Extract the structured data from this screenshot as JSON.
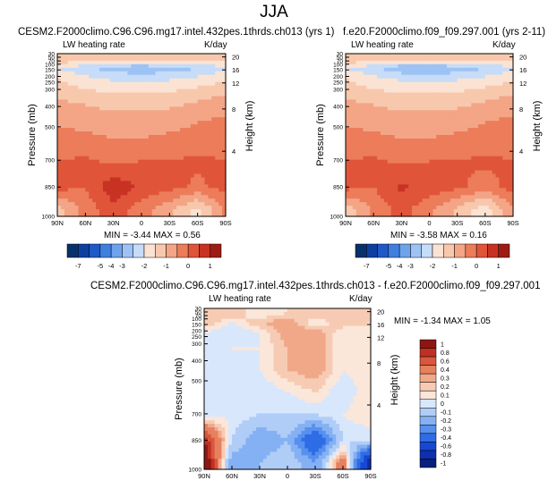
{
  "figure": {
    "title": "JJA"
  },
  "palette": {
    "main": [
      "#08306b",
      "#0d3fa0",
      "#1f58c8",
      "#3f7fe0",
      "#6ea2ec",
      "#9dc3f4",
      "#c6dcf8",
      "#fbe3d4",
      "#f8c8ad",
      "#f3a586",
      "#ec7c5a",
      "#e0553a",
      "#c83223",
      "#9e1b15"
    ],
    "diff": [
      "#08207a",
      "#0d2fb0",
      "#1748d5",
      "#2f6ce6",
      "#5790ee",
      "#84b1f3",
      "#b0cdf7",
      "#d8e7fb",
      "#fbe6da",
      "#f7cbb3",
      "#f1a889",
      "#e7805f",
      "#d9573c",
      "#c03022",
      "#8e1612"
    ]
  },
  "panels": [
    {
      "title": "CESM2.F2000climo.C96.C96.mg17.intel.432pes.1thrds.ch013 (yrs 1)",
      "variable": "LW heating rate",
      "units": "K/day",
      "stats": "MIN = -3.44  MAX =  0.56",
      "xticks": [
        "90N",
        "60N",
        "30N",
        "0",
        "30S",
        "60S",
        "90S"
      ],
      "yticks": [
        "30",
        "50",
        "70",
        "100",
        "150",
        "200",
        "250",
        "300",
        "400",
        "500",
        "700",
        "850",
        "1000"
      ],
      "ylabel": "Pressure (mb)",
      "y2ticks": [
        "20",
        "16",
        "12",
        "8",
        "4"
      ],
      "y2label": "Height (km)"
    },
    {
      "title": "f.e20.F2000climo.f09_f09.297.001 (yrs 2-11)",
      "variable": "LW heating rate",
      "units": "K/day",
      "stats": "MIN = -3.58  MAX =  0.16",
      "xticks": [
        "90N",
        "60N",
        "30N",
        "0",
        "30S",
        "60S",
        "90S"
      ],
      "yticks": [
        "30",
        "50",
        "70",
        "100",
        "150",
        "200",
        "250",
        "300",
        "400",
        "500",
        "700",
        "850",
        "1000"
      ],
      "ylabel": "Pressure (mb)",
      "y2ticks": [
        "20",
        "16",
        "12",
        "8",
        "4"
      ],
      "y2label": "Height (km)"
    },
    {
      "title": "CESM2.F2000climo.C96.C96.mg17.intel.432pes.1thrds.ch013 - f.e20.F2000climo.f09_f09.297.001",
      "variable": "LW heating rate",
      "units": "K/day",
      "stats": "MIN = -1.34  MAX =   1.05",
      "xticks": [
        "90N",
        "60N",
        "30N",
        "0",
        "30S",
        "60S",
        "90S"
      ],
      "yticks": [
        "30",
        "50",
        "70",
        "100",
        "150",
        "200",
        "250",
        "300",
        "400",
        "500",
        "700",
        "850",
        "1000"
      ],
      "ylabel": "Pressure (mb)",
      "y2ticks": [
        "20",
        "16",
        "12",
        "8",
        "4"
      ],
      "y2label": "Height (km)"
    }
  ],
  "colorbars": {
    "main_labels": [
      "-7",
      "-5",
      "-4",
      "-3",
      "-2",
      "-1",
      "0",
      "1"
    ],
    "diff_labels": [
      "1",
      "0.8",
      "0.6",
      "0.4",
      "0.3",
      "0.2",
      "0.1",
      "0",
      "-0.1",
      "-0.2",
      "-0.3",
      "-0.4",
      "-0.6",
      "-0.8",
      "-1"
    ]
  },
  "chart_data": [
    {
      "type": "heatmap",
      "title": "CESM2.F2000climo.C96.C96.mg17.intel.432pes.1thrds.ch013 (yrs 1)",
      "x": [
        "90N",
        "60N",
        "30N",
        "0",
        "30S",
        "60S",
        "90S"
      ],
      "y": [
        30,
        70,
        150,
        250,
        400,
        550,
        700,
        850,
        1000
      ],
      "ylabel": "Pressure (mb)",
      "values": [
        [
          -1.5,
          -1.6,
          -1.8,
          -1.8,
          -1.7,
          -1.6,
          -1.6
        ],
        [
          -2.5,
          -2.9,
          -3.3,
          -3.4,
          -3.3,
          -3.0,
          -2.6
        ],
        [
          -2.0,
          -2.4,
          -2.6,
          -2.7,
          -2.6,
          -2.4,
          -2.1
        ],
        [
          -1.6,
          -1.8,
          -2.0,
          -2.0,
          -1.9,
          -1.7,
          -1.5
        ],
        [
          -1.1,
          -1.2,
          -1.4,
          -1.3,
          -1.3,
          -1.1,
          -1.0
        ],
        [
          -0.9,
          -0.9,
          -1.0,
          -1.0,
          -0.9,
          -0.8,
          -0.7
        ],
        [
          -0.5,
          -0.4,
          -0.6,
          -0.5,
          -0.5,
          -0.4,
          -0.5
        ],
        [
          -0.3,
          -0.5,
          0.4,
          -0.1,
          -0.3,
          -0.6,
          -0.3
        ],
        [
          -1.8,
          -0.8,
          -0.2,
          -0.8,
          -1.4,
          -2.2,
          -0.9
        ]
      ],
      "stats": {
        "min": -3.44,
        "max": 0.56
      }
    },
    {
      "type": "heatmap",
      "title": "f.e20.F2000climo.f09_f09.297.001 (yrs 2-11)",
      "x": [
        "90N",
        "60N",
        "30N",
        "0",
        "30S",
        "60S",
        "90S"
      ],
      "y": [
        30,
        70,
        150,
        250,
        400,
        550,
        700,
        850,
        1000
      ],
      "ylabel": "Pressure (mb)",
      "values": [
        [
          -1.5,
          -1.6,
          -1.8,
          -1.8,
          -1.7,
          -1.6,
          -1.6
        ],
        [
          -2.5,
          -2.9,
          -3.4,
          -3.5,
          -3.3,
          -3.0,
          -2.6
        ],
        [
          -2.0,
          -2.4,
          -2.6,
          -2.7,
          -2.6,
          -2.4,
          -2.1
        ],
        [
          -1.6,
          -1.8,
          -2.0,
          -2.0,
          -1.9,
          -1.7,
          -1.5
        ],
        [
          -1.1,
          -1.2,
          -1.4,
          -1.3,
          -1.3,
          -1.1,
          -1.0
        ],
        [
          -0.9,
          -0.9,
          -1.0,
          -1.0,
          -0.9,
          -0.8,
          -0.7
        ],
        [
          -0.5,
          -0.4,
          -0.6,
          -0.5,
          -0.5,
          -0.4,
          -0.5
        ],
        [
          -0.3,
          -0.5,
          0.1,
          -0.2,
          -0.4,
          -0.7,
          -0.3
        ],
        [
          -1.9,
          -0.9,
          -0.3,
          -0.9,
          -1.6,
          -2.4,
          -1.0
        ]
      ],
      "stats": {
        "min": -3.58,
        "max": 0.16
      }
    },
    {
      "type": "heatmap",
      "title": "CESM2.F2000climo.C96.C96.mg17.intel.432pes.1thrds.ch013 - f.e20.F2000climo.f09_f09.297.001",
      "x": [
        "90N",
        "60N",
        "30N",
        "0",
        "30S",
        "60S",
        "90S"
      ],
      "y": [
        30,
        70,
        150,
        250,
        400,
        550,
        700,
        850,
        1000
      ],
      "ylabel": "Pressure (mb)",
      "values": [
        [
          0.0,
          0.05,
          -0.05,
          0.0,
          0.05,
          0.0,
          0.0
        ],
        [
          0.05,
          -0.05,
          0.05,
          0.1,
          -0.05,
          0.05,
          0.0
        ],
        [
          -0.05,
          -0.1,
          -0.05,
          0.1,
          0.1,
          -0.05,
          -0.05
        ],
        [
          -0.1,
          -0.05,
          -0.05,
          0.05,
          0.1,
          -0.05,
          -0.05
        ],
        [
          -0.05,
          -0.1,
          -0.05,
          0.05,
          0.1,
          -0.05,
          0.0
        ],
        [
          -0.05,
          -0.05,
          -0.1,
          -0.05,
          0.0,
          -0.1,
          0.0
        ],
        [
          -0.1,
          -0.05,
          -0.1,
          -0.1,
          -0.1,
          -0.05,
          0.0
        ],
        [
          0.4,
          -0.1,
          -0.3,
          -0.2,
          -0.6,
          -0.1,
          -0.1
        ],
        [
          0.6,
          -0.3,
          -0.2,
          -0.1,
          -0.3,
          0.2,
          -1.0
        ]
      ],
      "stats": {
        "min": -1.34,
        "max": 1.05
      }
    }
  ]
}
